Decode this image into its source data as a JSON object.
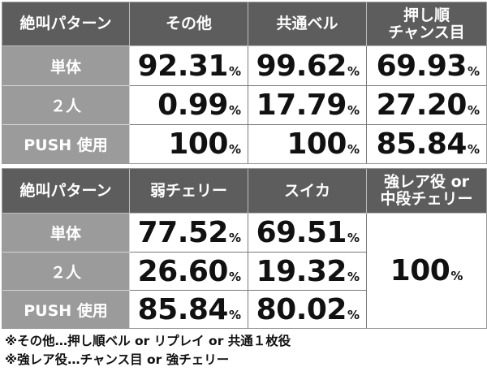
{
  "table1": {
    "headers": [
      "絶叫パターン",
      "その他",
      "共通ベル",
      "押し順チャンス目"
    ],
    "header_lines": [
      [
        "絶叫パターン"
      ],
      [
        "その他"
      ],
      [
        "共通ベル"
      ],
      [
        "押し順",
        "チャンス目"
      ]
    ],
    "rows": [
      {
        "label": "単体",
        "values": [
          "92.31",
          "99.62",
          "69.93"
        ]
      },
      {
        "label": "２人",
        "values": [
          "0.99",
          "17.79",
          "27.20"
        ]
      },
      {
        "label": "PUSH 使用",
        "values": [
          "100",
          "100",
          "85.84"
        ]
      }
    ]
  },
  "table2": {
    "headers": [
      "絶叫パターン",
      "弱チェリー",
      "スイカ",
      "強レア役 or 中段チェリー"
    ],
    "header_lines": [
      [
        "絶叫パターン"
      ],
      [
        "弱チェリー"
      ],
      [
        "スイカ"
      ],
      [
        "強レア役 or",
        "中段チェリー"
      ]
    ],
    "rows": [
      {
        "label": "単体",
        "values": [
          "77.52",
          "69.51"
        ]
      },
      {
        "label": "２人",
        "values": [
          "26.60",
          "19.32"
        ]
      },
      {
        "label": "PUSH 使用",
        "values": [
          "85.84",
          "80.02"
        ]
      }
    ],
    "merged_value": "100"
  },
  "unit": "%",
  "notes": [
    "※その他…押し順ベル or リプレイ or 共通１枚役",
    "※強レア役…チャンス目 or 強チェリー"
  ],
  "colors": {
    "header_bg": "#5d5d5d",
    "label_bg": "#9b9b9b",
    "cell_bg": "#ffffff"
  }
}
